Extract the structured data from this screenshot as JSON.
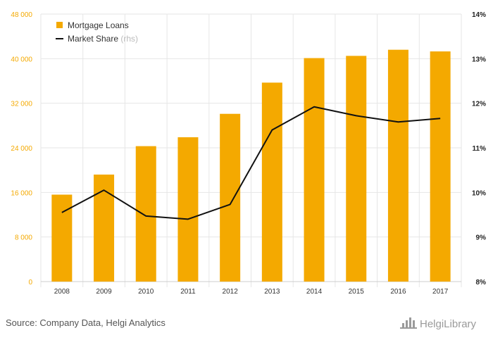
{
  "chart_data": {
    "type": "bar",
    "categories": [
      "2008",
      "2009",
      "2010",
      "2011",
      "2012",
      "2013",
      "2014",
      "2015",
      "2016",
      "2017"
    ],
    "series": [
      {
        "name": "Mortgage Loans",
        "type": "bar",
        "axis": "left",
        "values": [
          15600,
          19200,
          24300,
          25900,
          30100,
          35700,
          40100,
          40500,
          41600,
          41300
        ]
      },
      {
        "name": "Market Share",
        "name_note": "(rhs)",
        "type": "line",
        "axis": "right",
        "values": [
          9.55,
          10.05,
          9.47,
          9.4,
          9.73,
          11.4,
          11.92,
          11.72,
          11.58,
          11.66
        ]
      }
    ],
    "y_left": {
      "min": 0,
      "max": 48000,
      "ticks": [
        "0",
        "8 000",
        "16 000",
        "24 000",
        "32 000",
        "40 000",
        "48 000"
      ]
    },
    "y_right": {
      "min": 8,
      "max": 14,
      "ticks": [
        "8%",
        "9%",
        "10%",
        "11%",
        "12%",
        "13%",
        "14%"
      ]
    },
    "grid": true,
    "legend": "top-left",
    "colors": {
      "bar": "#f4a900",
      "line": "#111111",
      "grid": "#e6e6e6"
    }
  },
  "footer": {
    "source": "Source: Company Data, Helgi Analytics",
    "brand": "HelgiLibrary"
  }
}
